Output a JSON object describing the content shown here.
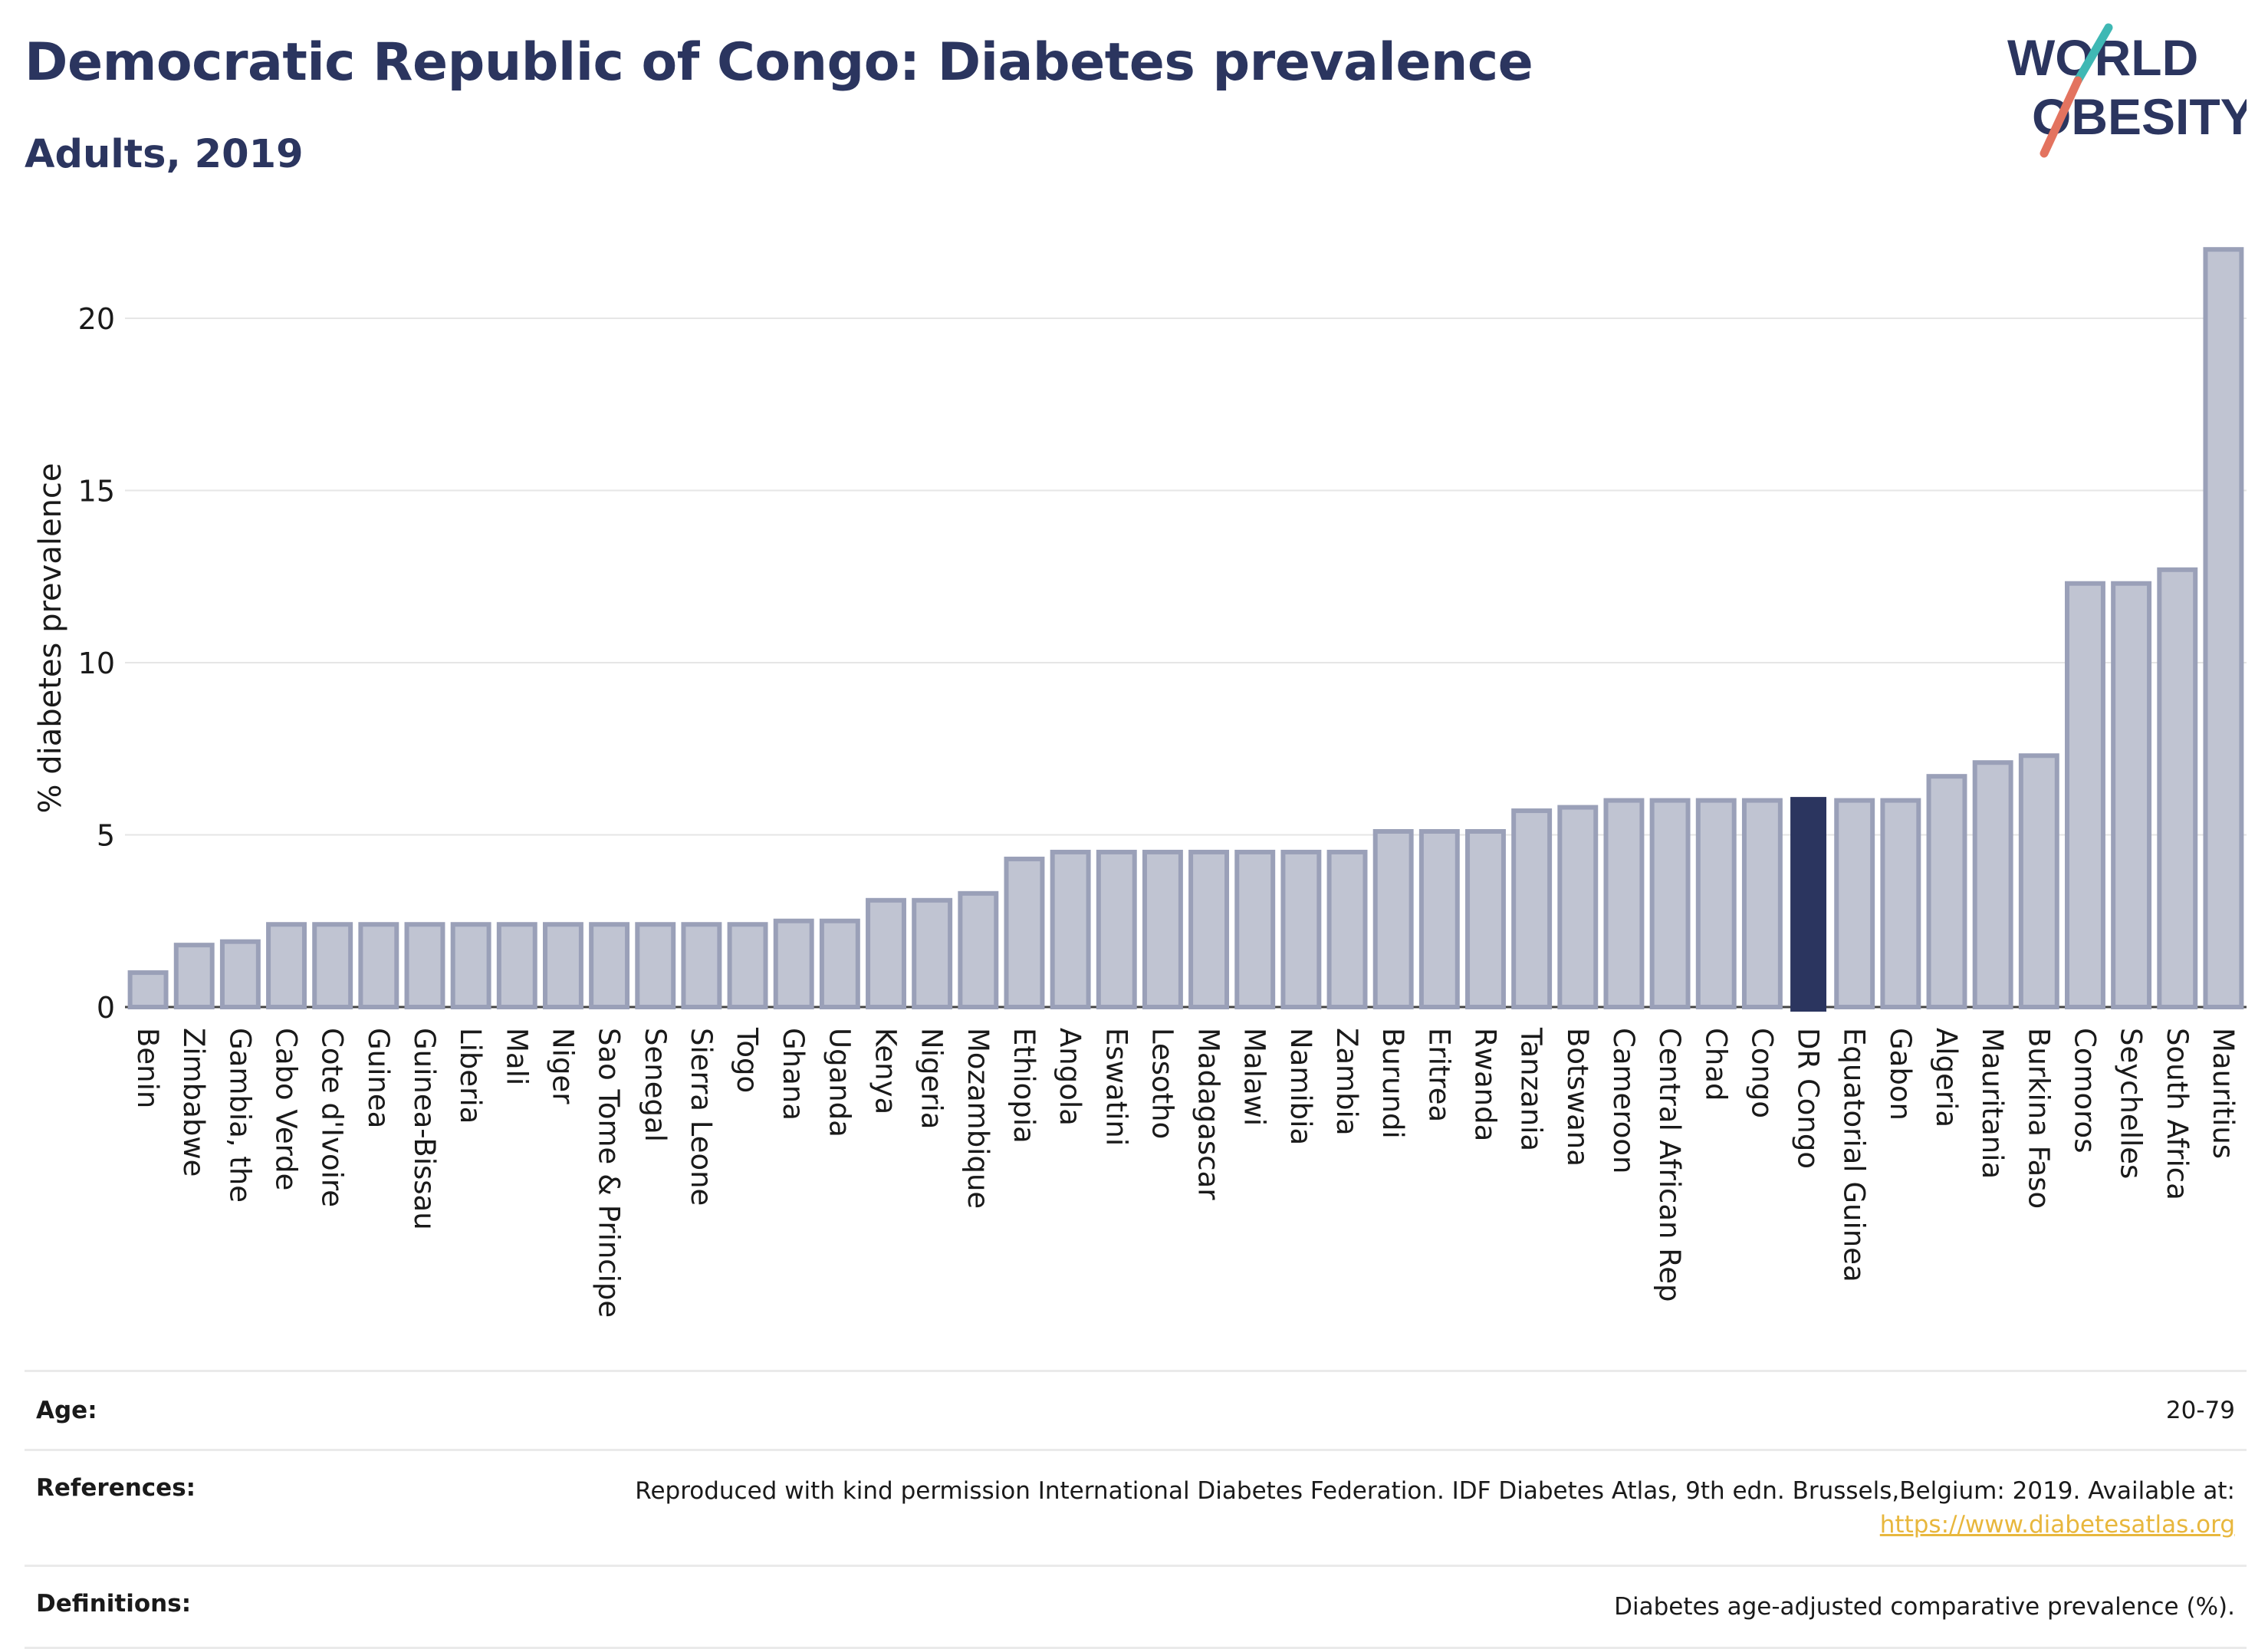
{
  "header": {
    "title": "Democratic Republic of Congo: Diabetes prevalence",
    "subtitle": "Adults, 2019"
  },
  "logo": {
    "line1": "WORLD",
    "line2": "OBESITY",
    "accent_teal": "#3fb8b4",
    "accent_coral": "#e3735f"
  },
  "colors": {
    "bar": "#c0c4d2",
    "bar_border": "#9aa0b8",
    "highlight": "#2b355f",
    "grid": "#e6e6e6",
    "axis_text": "#1a1a1a"
  },
  "chart_data": {
    "type": "bar",
    "title": "Democratic Republic of Congo: Diabetes prevalence",
    "subtitle": "Adults, 2019",
    "xlabel": "",
    "ylabel": "% diabetes prevalence",
    "ylim": [
      0,
      22
    ],
    "yticks": [
      0,
      5,
      10,
      15,
      20
    ],
    "grid": true,
    "highlight": "DR Congo",
    "categories": [
      "Benin",
      "Zimbabwe",
      "Gambia, the",
      "Cabo Verde",
      "Cote d'Ivoire",
      "Guinea",
      "Guinea-Bissau",
      "Liberia",
      "Mali",
      "Niger",
      "Sao Tome & Principe",
      "Senegal",
      "Sierra Leone",
      "Togo",
      "Ghana",
      "Uganda",
      "Kenya",
      "Nigeria",
      "Mozambique",
      "Ethiopia",
      "Angola",
      "Eswatini",
      "Lesotho",
      "Madagascar",
      "Malawi",
      "Namibia",
      "Zambia",
      "Burundi",
      "Eritrea",
      "Rwanda",
      "Tanzania",
      "Botswana",
      "Cameroon",
      "Central African Rep",
      "Chad",
      "Congo",
      "DR Congo",
      "Equatorial Guinea",
      "Gabon",
      "Algeria",
      "Mauritania",
      "Burkina Faso",
      "Comoros",
      "Seychelles",
      "South Africa",
      "Mauritius"
    ],
    "values": [
      1.0,
      1.8,
      1.9,
      2.4,
      2.4,
      2.4,
      2.4,
      2.4,
      2.4,
      2.4,
      2.4,
      2.4,
      2.4,
      2.4,
      2.5,
      2.5,
      3.1,
      3.1,
      3.3,
      4.3,
      4.5,
      4.5,
      4.5,
      4.5,
      4.5,
      4.5,
      4.5,
      5.1,
      5.1,
      5.1,
      5.7,
      5.8,
      6.0,
      6.0,
      6.0,
      6.0,
      6.1,
      6.0,
      6.0,
      6.7,
      7.1,
      7.3,
      12.3,
      12.3,
      12.7,
      22.0
    ]
  },
  "footer": {
    "age_label": "Age:",
    "age_value": "20-79",
    "references_label": "References:",
    "references_text": "Reproduced with kind permission International Diabetes Federation. IDF Diabetes Atlas, 9th edn. Brussels,Belgium: 2019. Available at:",
    "references_link": "https://www.diabetesatlas.org",
    "definitions_label": "Definitions:",
    "definitions_text": "Diabetes age-adjusted comparative prevalence (%)."
  }
}
